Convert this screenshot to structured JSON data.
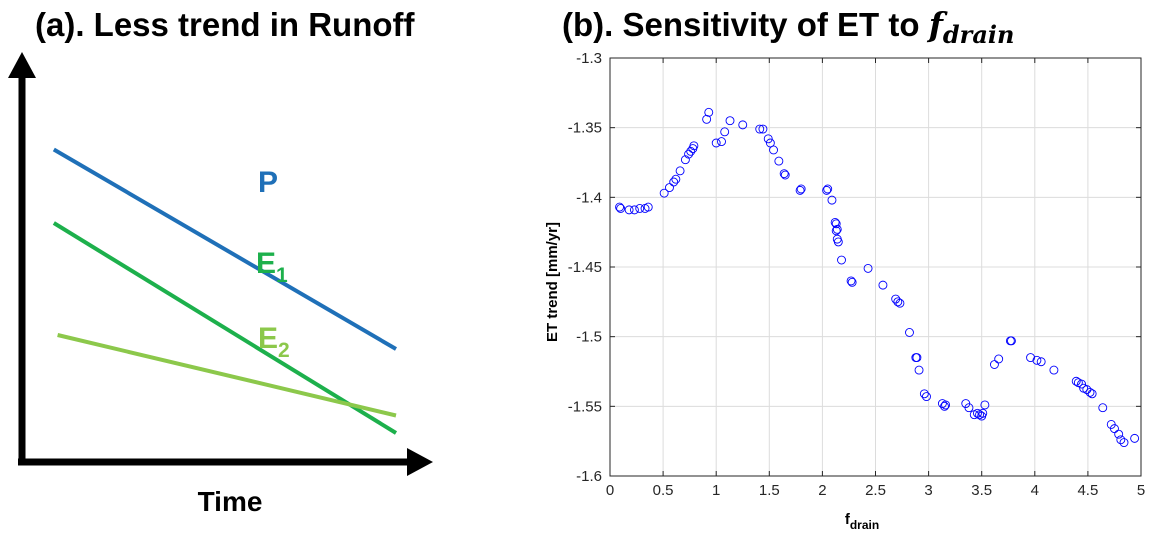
{
  "chart_data": [
    {
      "type": "line",
      "title": "(a). Less trend in Runoff",
      "xlabel": "Time",
      "ylabel": "",
      "axes": {
        "ticks": false,
        "arrows": true,
        "grid": false
      },
      "series": [
        {
          "name": "P",
          "name_main": "P",
          "name_sub": "",
          "color": "#1f70b8",
          "points": [
            [
              0.09,
              0.83
            ],
            [
              1.0,
              0.26
            ]
          ]
        },
        {
          "name": "E1",
          "name_main": "E",
          "name_sub": "1",
          "color": "#1db04c",
          "points": [
            [
              0.09,
              0.62
            ],
            [
              1.0,
              0.02
            ]
          ]
        },
        {
          "name": "E2",
          "name_main": "E",
          "name_sub": "2",
          "color": "#8cc84b",
          "points": [
            [
              0.1,
              0.3
            ],
            [
              1.0,
              0.07
            ]
          ]
        }
      ]
    },
    {
      "type": "scatter",
      "title_prefix": "(b). Sensitivity of ET to ",
      "title_math_main": "f",
      "title_math_sub": "drain",
      "xlabel_main": "f",
      "xlabel_sub": "drain",
      "ylabel": "ET trend [mm/yr]",
      "xlim": [
        0,
        5
      ],
      "ylim": [
        -1.6,
        -1.3
      ],
      "xticks": [
        0,
        0.5,
        1,
        1.5,
        2,
        2.5,
        3,
        3.5,
        4,
        4.5,
        5
      ],
      "xticklabels": [
        "0",
        "0.5",
        "1",
        "1.5",
        "2",
        "2.5",
        "3",
        "3.5",
        "4",
        "4.5",
        "5"
      ],
      "yticks": [
        -1.6,
        -1.55,
        -1.5,
        -1.45,
        -1.4,
        -1.35,
        -1.3
      ],
      "yticklabels": [
        "-1.6",
        "-1.55",
        "-1.5",
        "-1.45",
        "-1.4",
        "-1.35",
        "-1.3"
      ],
      "grid": true,
      "marker_color": "#0000ff",
      "points": [
        [
          0.09,
          -1.407
        ],
        [
          0.1,
          -1.408
        ],
        [
          0.18,
          -1.409
        ],
        [
          0.23,
          -1.409
        ],
        [
          0.28,
          -1.408
        ],
        [
          0.33,
          -1.408
        ],
        [
          0.36,
          -1.407
        ],
        [
          0.51,
          -1.397
        ],
        [
          0.56,
          -1.393
        ],
        [
          0.6,
          -1.389
        ],
        [
          0.62,
          -1.387
        ],
        [
          0.66,
          -1.381
        ],
        [
          0.71,
          -1.373
        ],
        [
          0.74,
          -1.369
        ],
        [
          0.76,
          -1.367
        ],
        [
          0.78,
          -1.365
        ],
        [
          0.79,
          -1.363
        ],
        [
          0.91,
          -1.344
        ],
        [
          0.93,
          -1.339
        ],
        [
          1.0,
          -1.361
        ],
        [
          1.05,
          -1.36
        ],
        [
          1.08,
          -1.353
        ],
        [
          1.13,
          -1.345
        ],
        [
          1.25,
          -1.348
        ],
        [
          1.41,
          -1.351
        ],
        [
          1.44,
          -1.351
        ],
        [
          1.49,
          -1.358
        ],
        [
          1.51,
          -1.361
        ],
        [
          1.54,
          -1.366
        ],
        [
          1.59,
          -1.374
        ],
        [
          1.64,
          -1.383
        ],
        [
          1.65,
          -1.384
        ],
        [
          1.79,
          -1.395
        ],
        [
          1.8,
          -1.394
        ],
        [
          2.04,
          -1.395
        ],
        [
          2.05,
          -1.394
        ],
        [
          2.09,
          -1.402
        ],
        [
          2.12,
          -1.418
        ],
        [
          2.13,
          -1.419
        ],
        [
          2.13,
          -1.424
        ],
        [
          2.14,
          -1.423
        ],
        [
          2.14,
          -1.43
        ],
        [
          2.15,
          -1.432
        ],
        [
          2.18,
          -1.445
        ],
        [
          2.27,
          -1.46
        ],
        [
          2.28,
          -1.461
        ],
        [
          2.43,
          -1.451
        ],
        [
          2.57,
          -1.463
        ],
        [
          2.69,
          -1.473
        ],
        [
          2.71,
          -1.475
        ],
        [
          2.73,
          -1.476
        ],
        [
          2.82,
          -1.497
        ],
        [
          2.88,
          -1.515
        ],
        [
          2.89,
          -1.515
        ],
        [
          2.91,
          -1.524
        ],
        [
          2.96,
          -1.541
        ],
        [
          2.98,
          -1.543
        ],
        [
          3.13,
          -1.548
        ],
        [
          3.15,
          -1.55
        ],
        [
          3.16,
          -1.549
        ],
        [
          3.35,
          -1.548
        ],
        [
          3.38,
          -1.551
        ],
        [
          3.43,
          -1.556
        ],
        [
          3.46,
          -1.555
        ],
        [
          3.48,
          -1.556
        ],
        [
          3.5,
          -1.557
        ],
        [
          3.51,
          -1.555
        ],
        [
          3.53,
          -1.549
        ],
        [
          3.62,
          -1.52
        ],
        [
          3.66,
          -1.516
        ],
        [
          3.77,
          -1.503
        ],
        [
          3.78,
          -1.503
        ],
        [
          3.96,
          -1.515
        ],
        [
          4.02,
          -1.517
        ],
        [
          4.06,
          -1.518
        ],
        [
          4.18,
          -1.524
        ],
        [
          4.39,
          -1.532
        ],
        [
          4.41,
          -1.533
        ],
        [
          4.44,
          -1.534
        ],
        [
          4.46,
          -1.537
        ],
        [
          4.49,
          -1.538
        ],
        [
          4.52,
          -1.54
        ],
        [
          4.54,
          -1.541
        ],
        [
          4.64,
          -1.551
        ],
        [
          4.72,
          -1.563
        ],
        [
          4.75,
          -1.566
        ],
        [
          4.79,
          -1.57
        ],
        [
          4.81,
          -1.574
        ],
        [
          4.84,
          -1.576
        ],
        [
          4.94,
          -1.573
        ]
      ]
    }
  ]
}
